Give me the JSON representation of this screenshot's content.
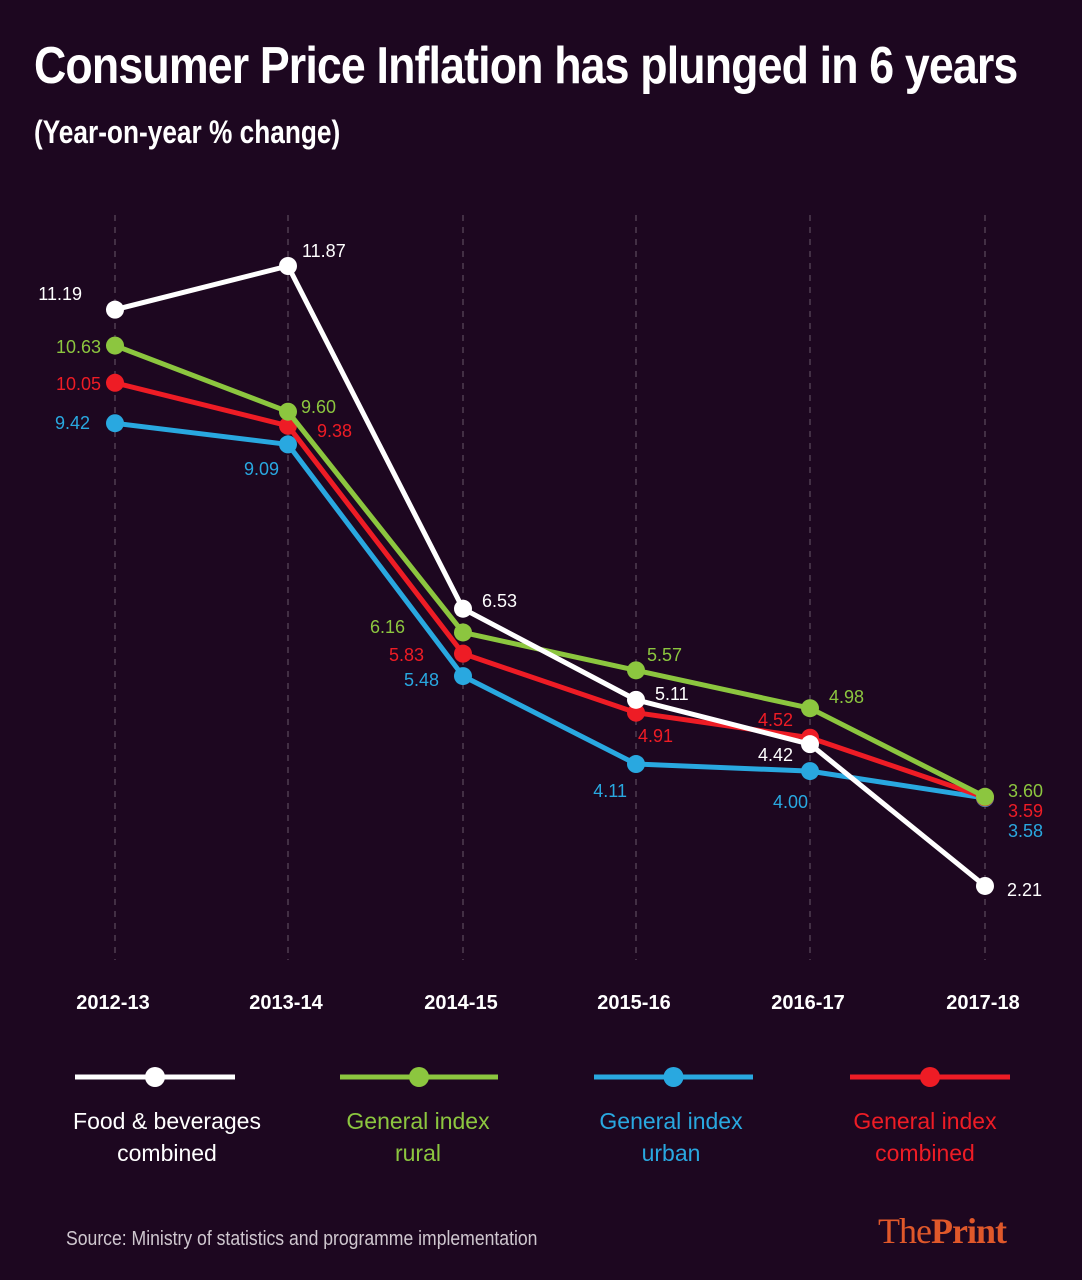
{
  "chart_data": {
    "type": "line",
    "title": "Consumer Price Inflation has plunged in 6 years",
    "subtitle": "(Year-on-year % change)",
    "categories": [
      "2012-13",
      "2013-14",
      "2014-15",
      "2015-16",
      "2016-17",
      "2017-18"
    ],
    "series": [
      {
        "name": "Food & beverages combined",
        "color": "#ffffff",
        "values": [
          11.19,
          11.87,
          6.53,
          5.11,
          4.42,
          2.21
        ]
      },
      {
        "name": "General index rural",
        "color": "#8cc63f",
        "values": [
          10.63,
          9.6,
          6.16,
          5.57,
          4.98,
          3.6
        ]
      },
      {
        "name": "General index urban",
        "color": "#29a8e0",
        "values": [
          9.42,
          9.09,
          5.48,
          4.11,
          4.0,
          3.58
        ]
      },
      {
        "name": "General index combined",
        "color": "#ee1c25",
        "values": [
          10.05,
          9.38,
          5.83,
          4.91,
          4.52,
          3.59
        ]
      }
    ],
    "ylim": [
      2.21,
      11.87
    ],
    "grid": "vertical dashed",
    "legend": "bottom"
  },
  "legend": {
    "food": [
      "Food & beverages",
      "combined"
    ],
    "rural": [
      "General index",
      "rural"
    ],
    "urban": [
      "General index",
      "urban"
    ],
    "combined": [
      "General index",
      "combined"
    ]
  },
  "source": "Source: Ministry of statistics and programme implementation",
  "logo": {
    "the": "The",
    "print": "Print"
  }
}
